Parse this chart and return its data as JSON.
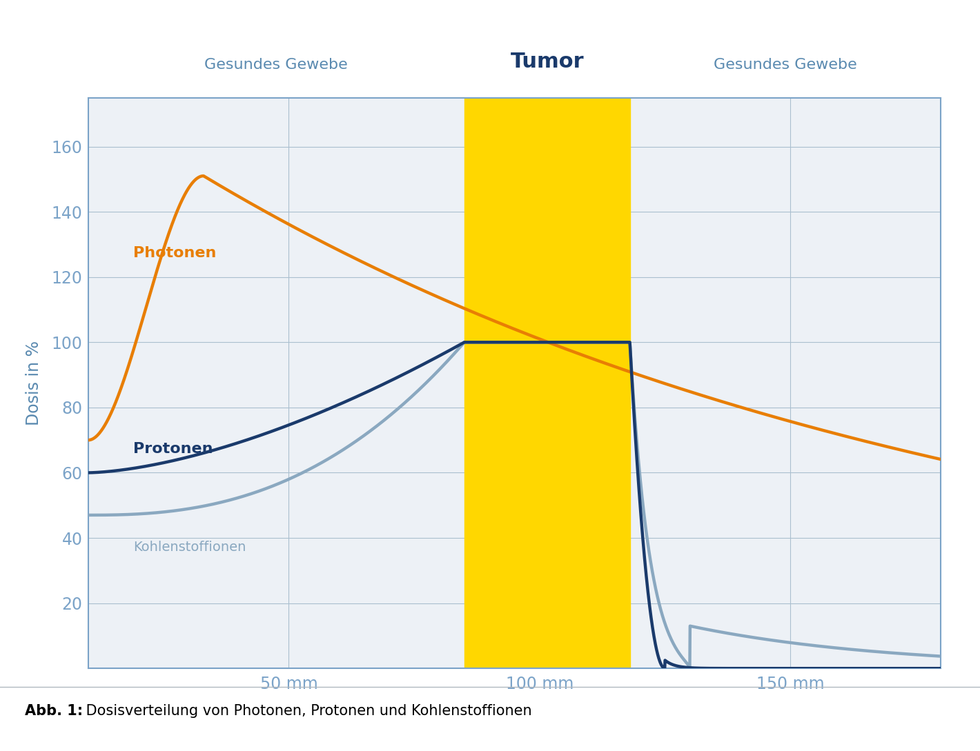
{
  "bg_color": "#f0f4f8",
  "plot_bg_color": "#edf1f6",
  "border_color": "#7ba3c8",
  "grid_color": "#aabfcf",
  "tumor_color": "#FFD700",
  "tumor_start": 85,
  "tumor_end": 118,
  "xlim": [
    10,
    180
  ],
  "ylim": [
    0,
    175
  ],
  "yticks": [
    20,
    40,
    60,
    80,
    100,
    120,
    140,
    160
  ],
  "xtick_positions": [
    50,
    100,
    150
  ],
  "xtick_labels": [
    "50 mm",
    "100 mm",
    "150 mm"
  ],
  "ylabel": "Dosis in %",
  "ylabel_color": "#5a8ab0",
  "tick_color": "#7ba3c8",
  "photon_color": "#E87E04",
  "proton_color": "#1a3a6b",
  "carbon_color": "#8aa8c0",
  "label_gesundes_left": "Gesundes Gewebe",
  "label_tumor": "Tumor",
  "label_gesundes_right": "Gesundes Gewebe",
  "label_photonen": "Photonen",
  "label_protonen": "Protonen",
  "label_kohlenstoff": "Kohlenstoffionen",
  "caption_bold": "Abb. 1:",
  "caption_rest": " Dosisverteilung von Photonen, Protonen und Kohlenstoffionen",
  "header_color": "#5a8ab0",
  "tumor_label_color": "#1a3a6b"
}
